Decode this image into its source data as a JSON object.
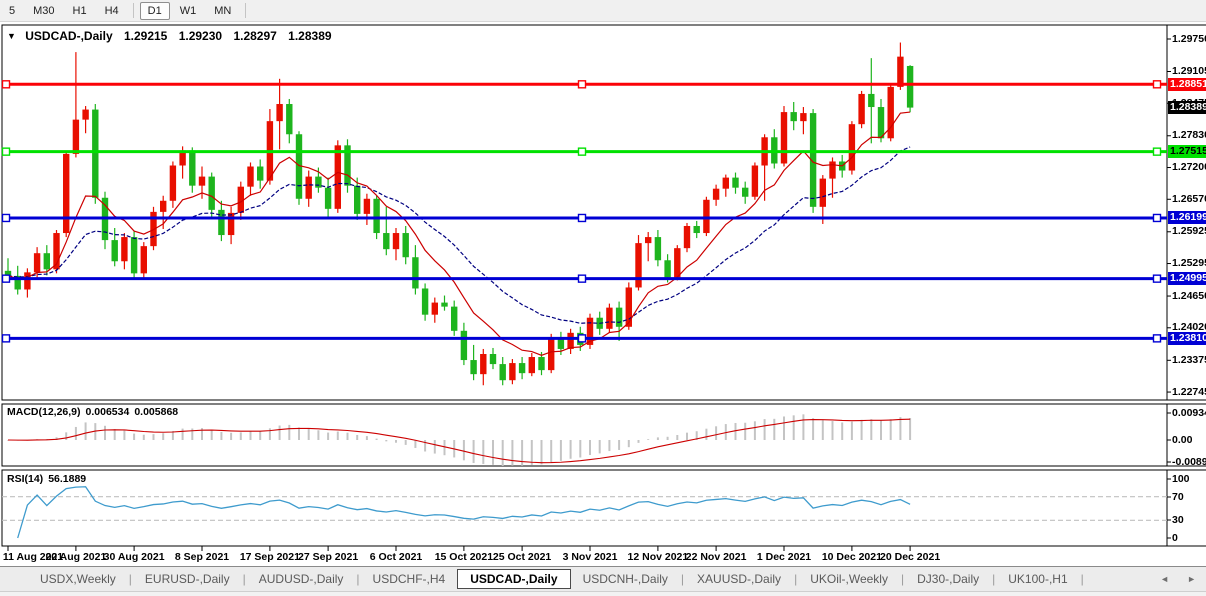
{
  "toolbar": {
    "buttons": [
      "5",
      "M30",
      "H1",
      "H4",
      "D1",
      "W1",
      "MN"
    ],
    "active": "D1"
  },
  "title": {
    "dropdown_glyph": "▼",
    "symbol": "USDCAD-,Daily",
    "open": "1.29215",
    "high": "1.29230",
    "low": "1.28297",
    "close": "1.28389"
  },
  "price_axis": {
    "ticks": [
      "1.29750",
      "1.29105",
      "1.28475",
      "1.27830",
      "1.27200",
      "1.26570",
      "1.25925",
      "1.25295",
      "1.24650",
      "1.24020",
      "1.23375",
      "1.22745"
    ],
    "current_badge": {
      "label": "1.28389",
      "bg": "#000000",
      "text": "#ffffff"
    }
  },
  "hlines": [
    {
      "label": "1.28851",
      "price": 1.28851,
      "color": "#fb0207",
      "text_color": "#ffffff"
    },
    {
      "label": "1.27515",
      "price": 1.27515,
      "color": "#00e100",
      "text_color": "#000000"
    },
    {
      "label": "1.26199",
      "price": 1.26199,
      "color": "#0000d4",
      "text_color": "#ffffff"
    },
    {
      "label": "1.24995",
      "price": 1.24995,
      "color": "#0000d4",
      "text_color": "#ffffff"
    },
    {
      "label": "1.23810",
      "price": 1.2381,
      "color": "#0000d4",
      "text_color": "#ffffff"
    }
  ],
  "macd": {
    "name_label": "MACD(12,26,9)",
    "value_main": "0.006534",
    "value_signal": "0.005868",
    "axis_labels": [
      "0.009345",
      "0.00",
      "-0.008903"
    ]
  },
  "rsi": {
    "name_label": "RSI(14)",
    "value": "56.1889",
    "axis_labels": [
      "100",
      "70",
      "30",
      "0"
    ],
    "levels": [
      70,
      30
    ]
  },
  "date_axis": {
    "labels": [
      "11 Aug 2021",
      "20 Aug 2021",
      "30 Aug 2021",
      "8 Sep 2021",
      "17 Sep 2021",
      "27 Sep 2021",
      "6 Oct 2021",
      "15 Oct 2021",
      "25 Oct 2021",
      "3 Nov 2021",
      "12 Nov 2021",
      "22 Nov 2021",
      "1 Dec 2021",
      "10 Dec 2021",
      "20 Dec 2021"
    ],
    "tick_bar_index": [
      0,
      7,
      13,
      20,
      27,
      33,
      40,
      47,
      53,
      60,
      67,
      73,
      80,
      87,
      93
    ]
  },
  "tabs": {
    "items": [
      "USDX,Weekly",
      "EURUSD-,Daily",
      "AUDUSD-,Daily",
      "USDCHF-,H4",
      "USDCAD-,Daily",
      "USDCNH-,Daily",
      "XAUUSD-,Daily",
      "UKOil-,Weekly",
      "DJ30-,Daily",
      "UK100-,H1"
    ],
    "active_index": 4,
    "scroll_left": "◄",
    "scroll_right": "►"
  },
  "chart_data": {
    "type": "candlestick",
    "symbol": "USDCAD",
    "timeframe": "Daily",
    "title": "USDCAD-,Daily  1.29215 1.29230 1.28297 1.28389",
    "price_range": [
      1.22745,
      1.2975
    ],
    "horizontal_levels": [
      1.28851,
      1.27515,
      1.26199,
      1.24995,
      1.2381
    ],
    "y_ticks": [
      1.2975,
      1.29105,
      1.28475,
      1.2783,
      1.272,
      1.2657,
      1.25925,
      1.25295,
      1.2465,
      1.2402,
      1.23375,
      1.22745
    ],
    "x_tick_labels": [
      "11 Aug 2021",
      "20 Aug 2021",
      "30 Aug 2021",
      "8 Sep 2021",
      "17 Sep 2021",
      "27 Sep 2021",
      "6 Oct 2021",
      "15 Oct 2021",
      "25 Oct 2021",
      "3 Nov 2021",
      "12 Nov 2021",
      "22 Nov 2021",
      "1 Dec 2021",
      "10 Dec 2021",
      "20 Dec 2021"
    ],
    "indicators": [
      {
        "name": "MACD",
        "params": "12,26,9",
        "values": [
          0.006534,
          0.005868
        ],
        "axis_range": [
          -0.008903,
          0.009345
        ]
      },
      {
        "name": "RSI",
        "params": "14",
        "value": 56.1889,
        "axis_range": [
          0,
          100
        ],
        "levels": [
          30,
          70
        ]
      }
    ],
    "last_bar_ohlc": [
      1.29215,
      1.2923,
      1.28297,
      1.28389
    ],
    "candles": [
      [
        1.2515,
        1.254,
        1.2495,
        1.2505
      ],
      [
        1.2505,
        1.2525,
        1.2468,
        1.2478
      ],
      [
        1.2478,
        1.252,
        1.2462,
        1.2512
      ],
      [
        1.2512,
        1.2562,
        1.2498,
        1.255
      ],
      [
        1.255,
        1.2566,
        1.2506,
        1.2518
      ],
      [
        1.2518,
        1.2596,
        1.251,
        1.259
      ],
      [
        1.259,
        1.2752,
        1.2582,
        1.2747
      ],
      [
        1.2747,
        1.2949,
        1.274,
        1.2815
      ],
      [
        1.2815,
        1.2842,
        1.2788,
        1.2835
      ],
      [
        1.2835,
        1.2846,
        1.2648,
        1.266
      ],
      [
        1.266,
        1.2672,
        1.2558,
        1.2576
      ],
      [
        1.2576,
        1.26,
        1.2524,
        1.2534
      ],
      [
        1.2534,
        1.259,
        1.2518,
        1.2582
      ],
      [
        1.2582,
        1.2594,
        1.2498,
        1.251
      ],
      [
        1.251,
        1.2572,
        1.2502,
        1.2564
      ],
      [
        1.2564,
        1.2642,
        1.2556,
        1.2632
      ],
      [
        1.2632,
        1.2664,
        1.2598,
        1.2654
      ],
      [
        1.2654,
        1.2732,
        1.264,
        1.2724
      ],
      [
        1.2724,
        1.2762,
        1.2698,
        1.2754
      ],
      [
        1.2754,
        1.276,
        1.267,
        1.2684
      ],
      [
        1.2684,
        1.2722,
        1.2658,
        1.2702
      ],
      [
        1.2702,
        1.271,
        1.262,
        1.2636
      ],
      [
        1.2636,
        1.2654,
        1.2574,
        1.2586
      ],
      [
        1.2586,
        1.2642,
        1.2568,
        1.263
      ],
      [
        1.263,
        1.2692,
        1.2616,
        1.2682
      ],
      [
        1.2682,
        1.273,
        1.2664,
        1.2722
      ],
      [
        1.2722,
        1.2736,
        1.2678,
        1.2694
      ],
      [
        1.2694,
        1.2836,
        1.2686,
        1.2812
      ],
      [
        1.2812,
        1.2896,
        1.2756,
        1.2846
      ],
      [
        1.2846,
        1.2856,
        1.2768,
        1.2786
      ],
      [
        1.2786,
        1.2792,
        1.2646,
        1.2658
      ],
      [
        1.2658,
        1.2714,
        1.2642,
        1.2702
      ],
      [
        1.2702,
        1.272,
        1.267,
        1.268
      ],
      [
        1.268,
        1.27,
        1.2622,
        1.2638
      ],
      [
        1.2638,
        1.2774,
        1.263,
        1.2764
      ],
      [
        1.2764,
        1.2776,
        1.267,
        1.2684
      ],
      [
        1.2684,
        1.27,
        1.2616,
        1.2628
      ],
      [
        1.2628,
        1.2668,
        1.2606,
        1.2658
      ],
      [
        1.2658,
        1.2664,
        1.2578,
        1.259
      ],
      [
        1.259,
        1.2642,
        1.2546,
        1.2558
      ],
      [
        1.2558,
        1.26,
        1.2536,
        1.259
      ],
      [
        1.259,
        1.2604,
        1.2528,
        1.2542
      ],
      [
        1.2542,
        1.2566,
        1.2468,
        1.248
      ],
      [
        1.248,
        1.249,
        1.2416,
        1.2428
      ],
      [
        1.2428,
        1.2462,
        1.2412,
        1.2452
      ],
      [
        1.2452,
        1.2466,
        1.2436,
        1.2444
      ],
      [
        1.2444,
        1.2456,
        1.2386,
        1.2396
      ],
      [
        1.2396,
        1.2412,
        1.2328,
        1.2338
      ],
      [
        1.2338,
        1.2368,
        1.2298,
        1.231
      ],
      [
        1.231,
        1.236,
        1.2288,
        1.235
      ],
      [
        1.235,
        1.2362,
        1.232,
        1.233
      ],
      [
        1.233,
        1.2344,
        1.2288,
        1.2298
      ],
      [
        1.2298,
        1.234,
        1.229,
        1.2332
      ],
      [
        1.2332,
        1.2344,
        1.23,
        1.2312
      ],
      [
        1.2312,
        1.2352,
        1.2306,
        1.2344
      ],
      [
        1.2344,
        1.2354,
        1.2308,
        1.2318
      ],
      [
        1.2318,
        1.239,
        1.2312,
        1.2382
      ],
      [
        1.2382,
        1.2394,
        1.2348,
        1.236
      ],
      [
        1.236,
        1.24,
        1.235,
        1.2392
      ],
      [
        1.2392,
        1.2404,
        1.2356,
        1.2368
      ],
      [
        1.2368,
        1.243,
        1.236,
        1.2422
      ],
      [
        1.2422,
        1.2434,
        1.2388,
        1.24
      ],
      [
        1.24,
        1.245,
        1.2392,
        1.2442
      ],
      [
        1.2442,
        1.2454,
        1.2376,
        1.2404
      ],
      [
        1.2404,
        1.2492,
        1.2398,
        1.2482
      ],
      [
        1.2482,
        1.2586,
        1.2476,
        1.257
      ],
      [
        1.257,
        1.2592,
        1.2534,
        1.2582
      ],
      [
        1.2582,
        1.2596,
        1.2524,
        1.2536
      ],
      [
        1.2536,
        1.2548,
        1.2492,
        1.2502
      ],
      [
        1.2502,
        1.2566,
        1.2496,
        1.256
      ],
      [
        1.256,
        1.261,
        1.2552,
        1.2604
      ],
      [
        1.2604,
        1.2614,
        1.258,
        1.259
      ],
      [
        1.259,
        1.2662,
        1.2584,
        1.2656
      ],
      [
        1.2656,
        1.2686,
        1.2644,
        1.2678
      ],
      [
        1.2678,
        1.2706,
        1.2662,
        1.27
      ],
      [
        1.27,
        1.271,
        1.2668,
        1.268
      ],
      [
        1.268,
        1.2692,
        1.2648,
        1.2662
      ],
      [
        1.2662,
        1.273,
        1.2656,
        1.2724
      ],
      [
        1.2724,
        1.2786,
        1.2654,
        1.278
      ],
      [
        1.278,
        1.2796,
        1.2718,
        1.2728
      ],
      [
        1.2728,
        1.2842,
        1.2722,
        1.283
      ],
      [
        1.283,
        1.285,
        1.2794,
        1.2812
      ],
      [
        1.2812,
        1.284,
        1.2786,
        1.2828
      ],
      [
        1.2828,
        1.2836,
        1.263,
        1.2642
      ],
      [
        1.2642,
        1.2705,
        1.2608,
        1.2698
      ],
      [
        1.2698,
        1.274,
        1.266,
        1.2732
      ],
      [
        1.2732,
        1.2745,
        1.27,
        1.2714
      ],
      [
        1.2714,
        1.2812,
        1.2706,
        1.2806
      ],
      [
        1.2806,
        1.2872,
        1.2798,
        1.2866
      ],
      [
        1.2866,
        1.2937,
        1.2768,
        1.284
      ],
      [
        1.284,
        1.2856,
        1.277,
        1.2778
      ],
      [
        1.2778,
        1.2886,
        1.2772,
        1.288
      ],
      [
        1.288,
        1.2968,
        1.2874,
        1.294
      ],
      [
        1.29215,
        1.2923,
        1.28297,
        1.28389
      ]
    ],
    "colors": {
      "up": "#e80f00",
      "down": "#1eb41e",
      "ma_fast": "#cc0000",
      "ma_slow": "#000080",
      "macd_bar": "#c4c4c4",
      "macd_signal": "#cc0000",
      "rsi_line": "#3e9bcd",
      "level_dash": "#c0c0c0"
    }
  }
}
